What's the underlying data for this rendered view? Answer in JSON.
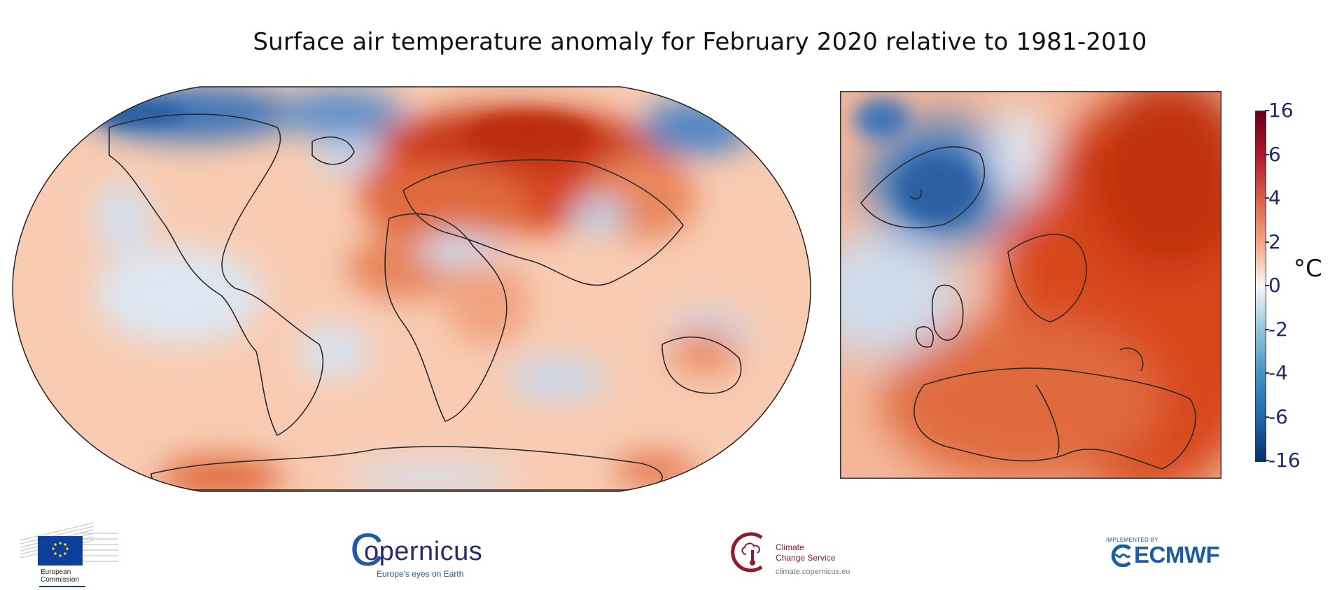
{
  "title": "Surface air temperature anomaly for February 2020 relative to 1981-2010",
  "colorbar": {
    "unit": "°C",
    "ticks": [
      "16",
      "6",
      "4",
      "2",
      "0",
      "-2",
      "-4",
      "-6",
      "-16"
    ],
    "colors": [
      "#08306b",
      "#2166ac",
      "#4393c3",
      "#92c5de",
      "#f7f7f7",
      "#f4a582",
      "#d6604d",
      "#b2182b",
      "#67001f"
    ]
  },
  "maps": {
    "world": {
      "projection": "Robinson",
      "region": "Global"
    },
    "europe": {
      "region": "Europe"
    }
  },
  "logos": {
    "ec": {
      "line1": "European",
      "line2": "Commission"
    },
    "copernicus": {
      "name": "opernicus",
      "initial": "C",
      "tagline": "Europe's eyes on Earth"
    },
    "c3s": {
      "line1": "Climate",
      "line2": "Change Service",
      "url": "climate.copernicus.eu"
    },
    "ecmwf": {
      "implemented": "IMPLEMENTED BY",
      "name": "ECMWF"
    }
  }
}
